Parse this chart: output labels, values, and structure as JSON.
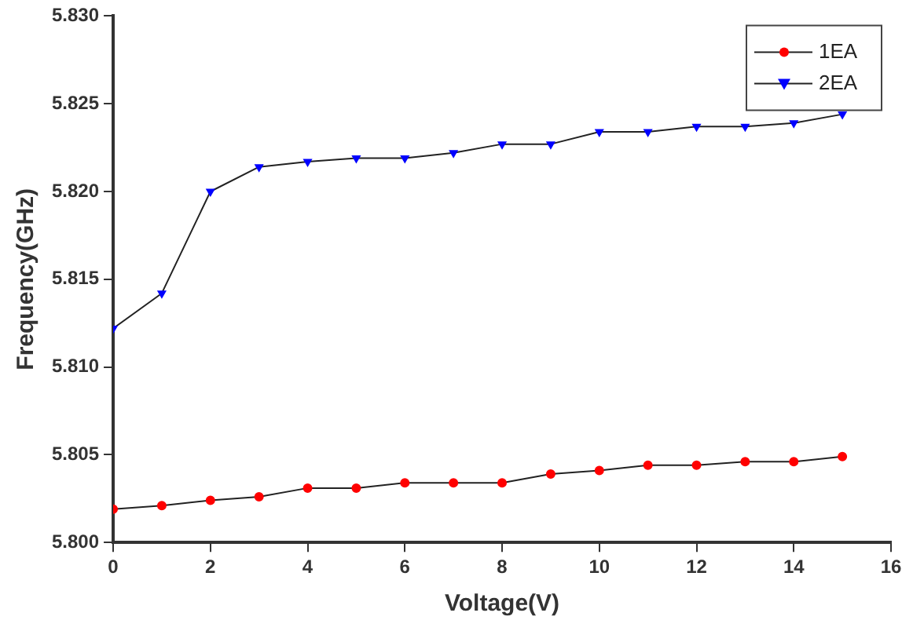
{
  "chart_data": {
    "type": "line",
    "xlabel": "Voltage(V)",
    "ylabel": "Frequency(GHz)",
    "x": [
      0,
      1,
      2,
      3,
      4,
      5,
      6,
      7,
      8,
      9,
      10,
      11,
      12,
      13,
      14,
      15
    ],
    "series": [
      {
        "name": "1EA",
        "color": "#ff0000",
        "marker": "circle",
        "values": [
          5.8019,
          5.8021,
          5.8024,
          5.8026,
          5.8031,
          5.8031,
          5.8034,
          5.8034,
          5.8034,
          5.8039,
          5.8041,
          5.8044,
          5.8044,
          5.8046,
          5.8046,
          5.8049
        ]
      },
      {
        "name": "2EA",
        "color": "#0000ff",
        "marker": "triangle",
        "values": [
          5.8122,
          5.8142,
          5.82,
          5.8214,
          5.8217,
          5.8219,
          5.8219,
          5.8222,
          5.8227,
          5.8227,
          5.8234,
          5.8234,
          5.8237,
          5.8237,
          5.8239,
          5.8244
        ]
      }
    ],
    "xlim": [
      0,
      16
    ],
    "xticks": [
      0,
      2,
      4,
      6,
      8,
      10,
      12,
      14,
      16
    ],
    "ylim": [
      5.8,
      5.83
    ],
    "yticks": [
      {
        "value": 5.8,
        "label": "5.800"
      },
      {
        "value": 5.805,
        "label": "5.805"
      },
      {
        "value": 5.81,
        "label": "5.810"
      },
      {
        "value": 5.815,
        "label": "5.815"
      },
      {
        "value": 5.82,
        "label": "5.820"
      },
      {
        "value": 5.825,
        "label": "5.825"
      },
      {
        "value": 5.83,
        "label": "5.830"
      }
    ],
    "grid": false,
    "legend": "top right"
  }
}
